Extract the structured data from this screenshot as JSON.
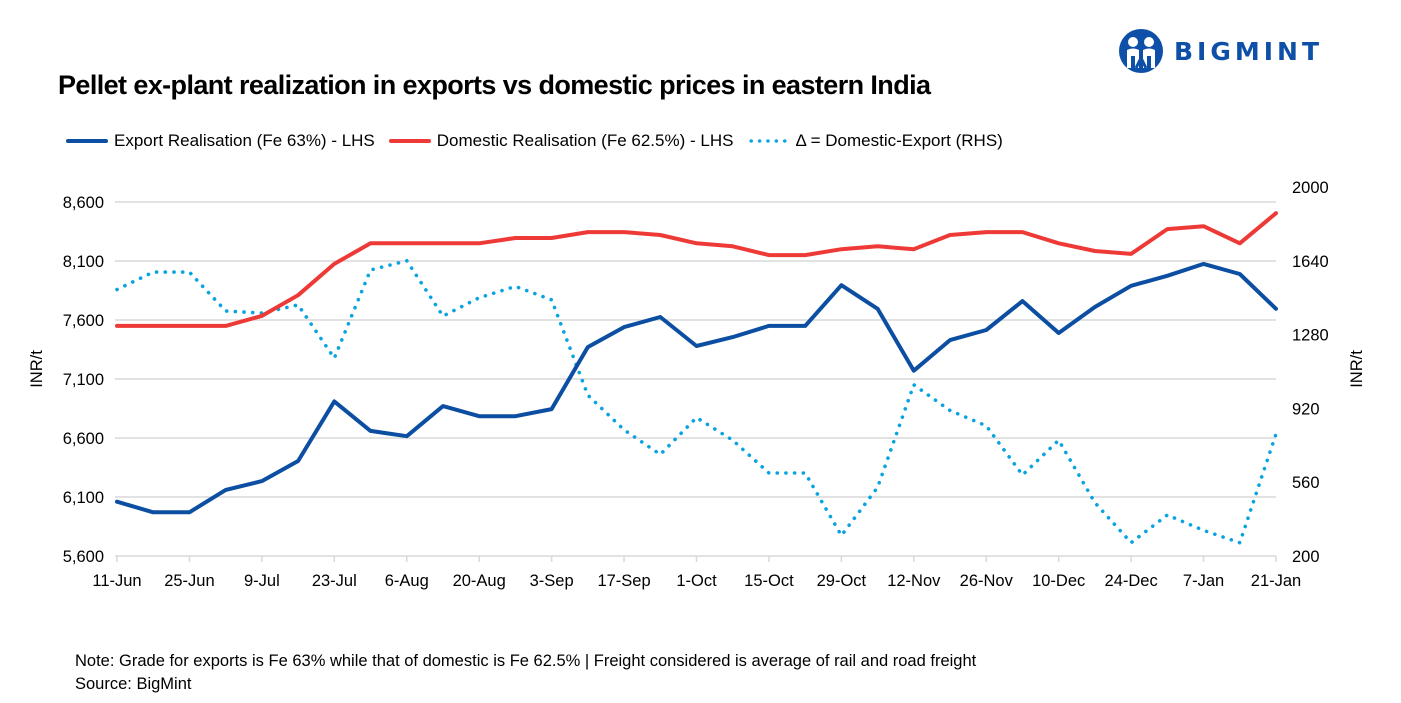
{
  "title": "Pellet ex-plant realization in exports vs domestic prices in eastern India",
  "logo": {
    "text": "BIGMINT",
    "icon": "bigmint-people-logo-icon",
    "color": "#0e4fa8"
  },
  "note": "Note: Grade for exports is Fe 63% while that of domestic is Fe 62.5% | Freight considered is average of rail and road freight",
  "source": "Source: BigMint",
  "chart_data": {
    "type": "line",
    "title": "Pellet ex-plant realization in exports vs domestic prices in eastern India",
    "xlabel": "",
    "ylabel": "INR/t",
    "y2label": "INR/t",
    "ylim": [
      5600,
      8600
    ],
    "y2lim": [
      200,
      2000
    ],
    "yticks": [
      "5,600",
      "6,100",
      "6,600",
      "7,100",
      "7,600",
      "8,100",
      "8,600"
    ],
    "y2ticks": [
      "200",
      "560",
      "920",
      "1280",
      "1640",
      "2000"
    ],
    "grid": true,
    "legend": "top",
    "x": [
      "11-Jun",
      "18-Jun",
      "25-Jun",
      "2-Jul",
      "9-Jul",
      "16-Jul",
      "23-Jul",
      "30-Jul",
      "6-Aug",
      "13-Aug",
      "20-Aug",
      "27-Aug",
      "3-Sep",
      "10-Sep",
      "17-Sep",
      "24-Sep",
      "1-Oct",
      "8-Oct",
      "15-Oct",
      "22-Oct",
      "29-Oct",
      "5-Nov",
      "12-Nov",
      "19-Nov",
      "26-Nov",
      "3-Dec",
      "10-Dec",
      "17-Dec",
      "24-Dec",
      "31-Dec",
      "7-Jan",
      "14-Jan",
      "21-Jan"
    ],
    "xtick_labels": [
      "11-Jun",
      "25-Jun",
      "9-Jul",
      "23-Jul",
      "6-Aug",
      "20-Aug",
      "3-Sep",
      "17-Sep",
      "1-Oct",
      "15-Oct",
      "29-Oct",
      "12-Nov",
      "26-Nov",
      "10-Dec",
      "24-Dec",
      "7-Jan",
      "21-Jan"
    ],
    "series": [
      {
        "name": "Export Realisation (Fe 63%) - LHS",
        "axis": "left",
        "color": "#0b4ea2",
        "style": "solid",
        "values": [
          6060,
          5970,
          5970,
          6160,
          6235,
          6405,
          6910,
          6660,
          6615,
          6870,
          6785,
          6785,
          6845,
          7370,
          7540,
          7625,
          7380,
          7455,
          7550,
          7550,
          7895,
          7695,
          7170,
          7430,
          7515,
          7760,
          7490,
          7710,
          7890,
          7975,
          8075,
          7990,
          7695
        ]
      },
      {
        "name": "Domestic Realisation (Fe 62.5%) - LHS",
        "axis": "left",
        "color": "#ee3a37",
        "style": "solid",
        "values": [
          7550,
          7550,
          7550,
          7550,
          7635,
          7810,
          8075,
          8250,
          8250,
          8250,
          8250,
          8295,
          8295,
          8345,
          8345,
          8320,
          8250,
          8225,
          8150,
          8150,
          8200,
          8225,
          8200,
          8320,
          8345,
          8345,
          8250,
          8185,
          8160,
          8370,
          8395,
          8250,
          8505
        ]
      },
      {
        "name": "Δ = Domestic-Export (RHS)",
        "axis": "right",
        "color": "#0aa3e2",
        "style": "dotted",
        "values": [
          1500,
          1585,
          1585,
          1395,
          1385,
          1425,
          1165,
          1595,
          1640,
          1370,
          1460,
          1515,
          1450,
          985,
          815,
          695,
          875,
          765,
          605,
          605,
          300,
          535,
          1035,
          910,
          835,
          595,
          765,
          460,
          265,
          400,
          325,
          265,
          795
        ]
      }
    ]
  }
}
